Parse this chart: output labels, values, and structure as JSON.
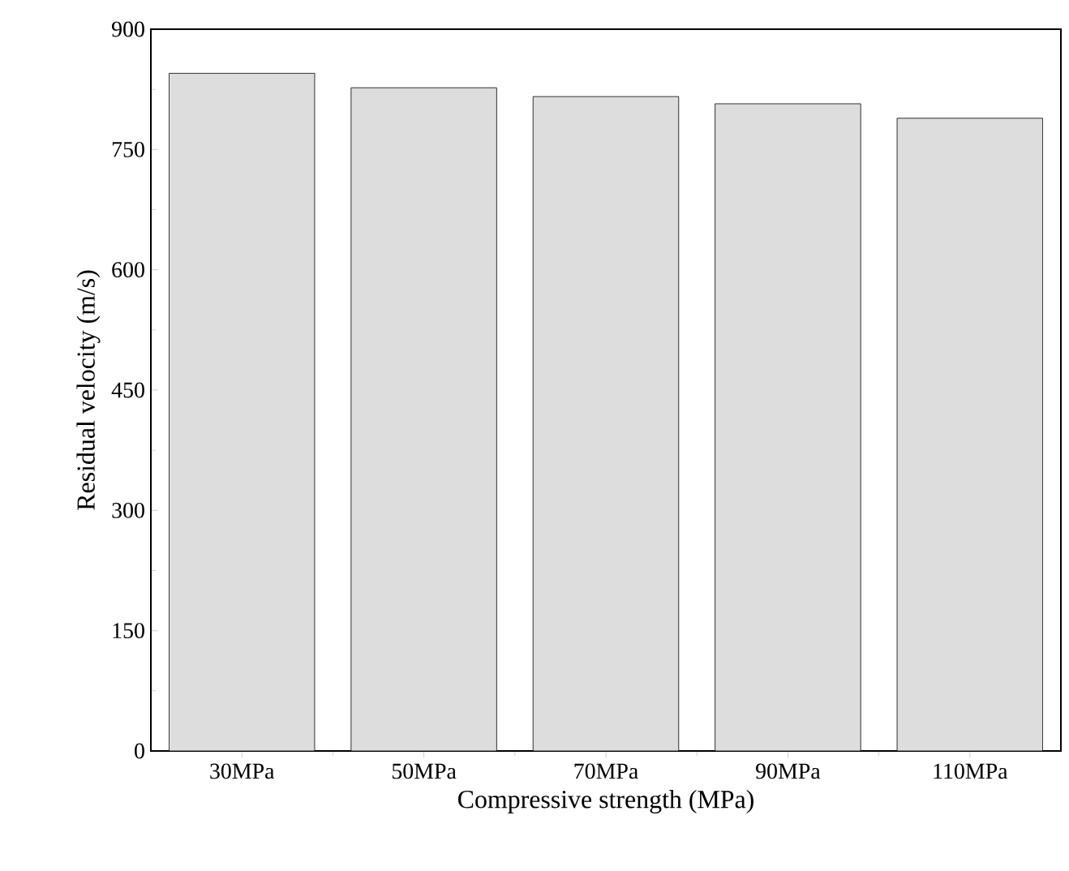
{
  "chart_data": {
    "type": "bar",
    "xlabel": "Compressive strength (MPa)",
    "ylabel": "Residual velocity (m/s)",
    "categories": [
      "30MPa",
      "50MPa",
      "70MPa",
      "90MPa",
      "110MPa"
    ],
    "values": [
      845,
      827,
      816,
      807,
      789
    ],
    "color": "#dddddd",
    "ylim": [
      0,
      900
    ],
    "yticks": [
      0,
      150,
      300,
      450,
      600,
      750,
      900
    ],
    "grid": false
  }
}
